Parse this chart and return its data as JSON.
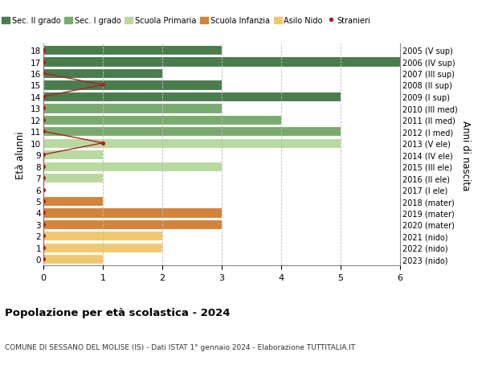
{
  "ages": [
    18,
    17,
    16,
    15,
    14,
    13,
    12,
    11,
    10,
    9,
    8,
    7,
    6,
    5,
    4,
    3,
    2,
    1,
    0
  ],
  "right_labels": [
    "2005 (V sup)",
    "2006 (IV sup)",
    "2007 (III sup)",
    "2008 (II sup)",
    "2009 (I sup)",
    "2010 (III med)",
    "2011 (II med)",
    "2012 (I med)",
    "2013 (V ele)",
    "2014 (IV ele)",
    "2015 (III ele)",
    "2016 (II ele)",
    "2017 (I ele)",
    "2018 (mater)",
    "2019 (mater)",
    "2020 (mater)",
    "2021 (nido)",
    "2022 (nido)",
    "2023 (nido)"
  ],
  "bar_values": [
    3,
    6,
    2,
    3,
    5,
    3,
    4,
    5,
    5,
    1,
    3,
    1,
    0,
    1,
    3,
    3,
    2,
    2,
    1
  ],
  "bar_colors": [
    "#4a7c4e",
    "#4a7c4e",
    "#4a7c4e",
    "#4a7c4e",
    "#4a7c4e",
    "#7aab6e",
    "#7aab6e",
    "#7aab6e",
    "#b8d9a0",
    "#b8d9a0",
    "#b8d9a0",
    "#b8d9a0",
    "#b8d9a0",
    "#d4833a",
    "#d4833a",
    "#d4833a",
    "#f0c870",
    "#f0c870",
    "#f0c870"
  ],
  "stranieri_x": [
    0,
    0,
    0,
    1,
    0,
    0,
    0,
    0,
    1,
    0,
    0,
    0,
    0,
    0,
    0,
    0,
    0,
    0,
    0
  ],
  "title": "Popolazione per età scolastica - 2024",
  "subtitle": "COMUNE DI SESSANO DEL MOLISE (IS) - Dati ISTAT 1° gennaio 2024 - Elaborazione TUTTITALIA.IT",
  "ylabel": "Età alunni",
  "right_ylabel": "Anni di nascita",
  "xlim": [
    0,
    6
  ],
  "xticks": [
    0,
    1,
    2,
    3,
    4,
    5,
    6
  ],
  "legend_labels": [
    "Sec. II grado",
    "Sec. I grado",
    "Scuola Primaria",
    "Scuola Infanzia",
    "Asilo Nido",
    "Stranieri"
  ],
  "legend_colors": [
    "#4a7c4e",
    "#7aab6e",
    "#b8d9a0",
    "#d4833a",
    "#f0c870",
    "#aa2222"
  ],
  "bg_color": "#ffffff",
  "grid_color": "#bbbbbb",
  "bar_height": 0.85,
  "stranieri_color": "#aa2222"
}
